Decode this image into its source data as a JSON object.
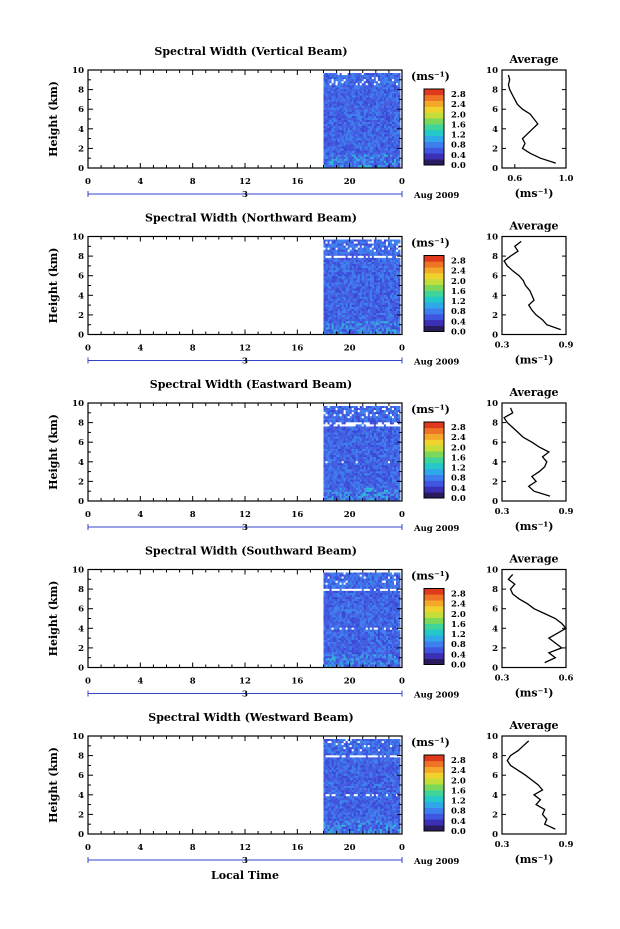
{
  "chart_data": [
    {
      "type": "heatmap",
      "title": "Spectral Width (Vertical Beam)",
      "ylabel": "Height (km)",
      "ylim": [
        0,
        10
      ],
      "yticks": [
        "0",
        "2",
        "4",
        "6",
        "8",
        "10"
      ],
      "xlim": [
        0,
        24
      ],
      "xticks": [
        "0",
        "4",
        "8",
        "12",
        "16",
        "20",
        "0"
      ],
      "data_x_range": [
        18,
        24
      ],
      "date_marker": "3",
      "date_label": "Aug 2009",
      "colorbar": {
        "unit": "(ms⁻¹)",
        "ticks": [
          "2.8",
          "2.4",
          "2.0",
          "1.6",
          "1.2",
          "0.8",
          "0.4",
          "0.0"
        ]
      },
      "average": {
        "title": "Average",
        "xlabel": "(ms⁻¹)",
        "xticks": [
          "0.6",
          "1.0"
        ],
        "xlim": [
          0.5,
          1.0
        ],
        "heights": [
          0.5,
          1,
          1.5,
          2,
          2.5,
          3,
          3.5,
          4,
          4.5,
          5,
          5.5,
          6,
          6.5,
          7,
          7.5,
          8,
          8.5,
          9,
          9.5
        ],
        "values": [
          0.92,
          0.8,
          0.72,
          0.66,
          0.68,
          0.66,
          0.7,
          0.74,
          0.78,
          0.75,
          0.72,
          0.66,
          0.62,
          0.6,
          0.58,
          0.56,
          0.55,
          0.56,
          0.55
        ]
      }
    },
    {
      "type": "heatmap",
      "title": "Spectral Width (Northward Beam)",
      "ylabel": "Height (km)",
      "ylim": [
        0,
        10
      ],
      "yticks": [
        "0",
        "2",
        "4",
        "6",
        "8",
        "10"
      ],
      "xlim": [
        0,
        24
      ],
      "xticks": [
        "0",
        "4",
        "8",
        "12",
        "16",
        "20",
        "0"
      ],
      "data_x_range": [
        18,
        24
      ],
      "date_marker": "3",
      "date_label": "Aug 2009",
      "colorbar": {
        "unit": "(ms⁻¹)",
        "ticks": [
          "2.8",
          "2.4",
          "2.0",
          "1.6",
          "1.2",
          "0.8",
          "0.4",
          "0.0"
        ]
      },
      "average": {
        "title": "Average",
        "xlabel": "(ms⁻¹)",
        "xticks": [
          "0.3",
          "0.9"
        ],
        "xlim": [
          0.3,
          0.9
        ],
        "heights": [
          0.5,
          1,
          1.5,
          2,
          2.5,
          3,
          3.5,
          4,
          4.5,
          5,
          5.5,
          6,
          6.5,
          7,
          7.5,
          8,
          8.5,
          9,
          9.5
        ],
        "values": [
          0.85,
          0.72,
          0.68,
          0.62,
          0.58,
          0.55,
          0.6,
          0.58,
          0.56,
          0.52,
          0.5,
          0.46,
          0.4,
          0.35,
          0.32,
          0.38,
          0.45,
          0.42,
          0.48
        ]
      }
    },
    {
      "type": "heatmap",
      "title": "Spectral Width (Eastward Beam)",
      "ylabel": "Height (km)",
      "ylim": [
        0,
        10
      ],
      "yticks": [
        "0",
        "2",
        "4",
        "6",
        "8",
        "10"
      ],
      "xlim": [
        0,
        24
      ],
      "xticks": [
        "0",
        "4",
        "8",
        "12",
        "16",
        "20",
        "0"
      ],
      "data_x_range": [
        18,
        24
      ],
      "date_marker": "3",
      "date_label": "Aug 2009",
      "colorbar": {
        "unit": "(ms⁻¹)",
        "ticks": [
          "2.8",
          "2.4",
          "2.0",
          "1.6",
          "1.2",
          "0.8",
          "0.4",
          "0.0"
        ]
      },
      "average": {
        "title": "Average",
        "xlabel": "(ms⁻¹)",
        "xticks": [
          "0.3",
          "0.9"
        ],
        "xlim": [
          0.3,
          0.9
        ],
        "heights": [
          0.5,
          1,
          1.5,
          2,
          2.5,
          3,
          3.5,
          4,
          4.5,
          5,
          5.5,
          6,
          6.5,
          7,
          7.5,
          8,
          8.5,
          9,
          9.5
        ],
        "values": [
          0.75,
          0.6,
          0.55,
          0.62,
          0.58,
          0.65,
          0.7,
          0.72,
          0.68,
          0.74,
          0.65,
          0.58,
          0.5,
          0.45,
          0.4,
          0.35,
          0.32,
          0.4,
          0.38
        ]
      }
    },
    {
      "type": "heatmap",
      "title": "Spectral Width (Southward Beam)",
      "ylabel": "Height (km)",
      "ylim": [
        0,
        10
      ],
      "yticks": [
        "0",
        "2",
        "4",
        "6",
        "8",
        "10"
      ],
      "xlim": [
        0,
        24
      ],
      "xticks": [
        "0",
        "4",
        "8",
        "12",
        "16",
        "20",
        "0"
      ],
      "data_x_range": [
        18,
        24
      ],
      "date_marker": "3",
      "date_label": "Aug 2009",
      "colorbar": {
        "unit": "(ms⁻¹)",
        "ticks": [
          "2.8",
          "2.4",
          "2.0",
          "1.6",
          "1.2",
          "0.8",
          "0.4",
          "0.0"
        ]
      },
      "average": {
        "title": "Average",
        "xlabel": "(ms⁻¹)",
        "xticks": [
          "0.3",
          "0.6"
        ],
        "xlim": [
          0.3,
          0.6
        ],
        "heights": [
          0.5,
          1,
          1.5,
          2,
          2.5,
          3,
          3.5,
          4,
          4.5,
          5,
          5.5,
          6,
          6.5,
          7,
          7.5,
          8,
          8.5,
          9,
          9.5
        ],
        "values": [
          0.5,
          0.55,
          0.52,
          0.58,
          0.55,
          0.52,
          0.56,
          0.6,
          0.58,
          0.55,
          0.5,
          0.45,
          0.42,
          0.38,
          0.35,
          0.34,
          0.36,
          0.33,
          0.35
        ]
      }
    },
    {
      "type": "heatmap",
      "title": "Spectral Width (Westward Beam)",
      "ylabel": "Height (km)",
      "ylim": [
        0,
        10
      ],
      "yticks": [
        "0",
        "2",
        "4",
        "6",
        "8",
        "10"
      ],
      "xlim": [
        0,
        24
      ],
      "xticks": [
        "0",
        "4",
        "8",
        "12",
        "16",
        "20",
        "0"
      ],
      "data_x_range": [
        18,
        24
      ],
      "date_marker": "3",
      "date_label": "Aug 2009",
      "colorbar": {
        "unit": "(ms⁻¹)",
        "ticks": [
          "2.8",
          "2.4",
          "2.0",
          "1.6",
          "1.2",
          "0.8",
          "0.4",
          "0.0"
        ]
      },
      "average": {
        "title": "Average",
        "xlabel": "(ms⁻¹)",
        "xticks": [
          "0.3",
          "0.9"
        ],
        "xlim": [
          0.3,
          0.9
        ],
        "heights": [
          0.5,
          1,
          1.5,
          2,
          2.5,
          3,
          3.5,
          4,
          4.5,
          5,
          5.5,
          6,
          6.5,
          7,
          7.5,
          8,
          8.5,
          9,
          9.5
        ],
        "values": [
          0.8,
          0.7,
          0.72,
          0.68,
          0.7,
          0.62,
          0.66,
          0.6,
          0.68,
          0.64,
          0.58,
          0.52,
          0.45,
          0.38,
          0.35,
          0.38,
          0.45,
          0.5,
          0.55
        ]
      }
    }
  ],
  "footer": {
    "xlabel": "Local Time"
  },
  "colors": {
    "colorbar": [
      "#2a1a5e",
      "#3b2fb5",
      "#3f57e0",
      "#3e7fef",
      "#2fa8ea",
      "#25c8c8",
      "#3ed49a",
      "#7bd85a",
      "#c3dd3a",
      "#f0d22c",
      "#f3a829",
      "#ef7425",
      "#e03a1e"
    ]
  }
}
